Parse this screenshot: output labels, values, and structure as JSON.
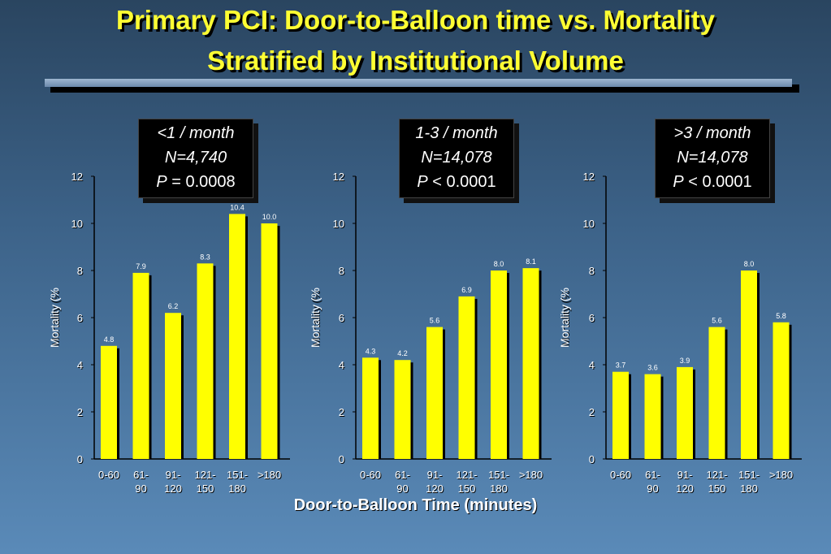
{
  "title": {
    "line1": "Primary PCI:  Door-to-Balloon time vs. Mortality",
    "line2": "Stratified by Institutional Volume"
  },
  "x_axis_title": "Door-to-Balloon Time (minutes)",
  "colors": {
    "bar": "#ffff00",
    "title": "#ffff33",
    "background": "#3c6288"
  },
  "chart_data": [
    {
      "type": "bar",
      "stratum": "<1 / month",
      "n_label": "N=4,740",
      "p_label": "P",
      "p_value": "= 0.0008",
      "ylabel": "Mortality (%",
      "ylim": [
        0,
        12
      ],
      "yticks": [
        "0",
        "2",
        "4",
        "6",
        "8",
        "10",
        "12"
      ],
      "categories": [
        [
          "0-60"
        ],
        [
          "61-",
          "90"
        ],
        [
          "91-",
          "120"
        ],
        [
          "121-",
          "150"
        ],
        [
          "151-",
          "180"
        ],
        [
          ">180"
        ]
      ],
      "values": [
        4.8,
        7.9,
        6.2,
        8.3,
        10.4,
        10.0
      ],
      "value_labels": [
        "4.8",
        "7.9",
        "6.2",
        "8.3",
        "10.4",
        "10.0"
      ]
    },
    {
      "type": "bar",
      "stratum": "1-3 / month",
      "n_label": "N=14,078",
      "p_label": "P",
      "p_value": "< 0.0001",
      "ylabel": "Mortality (%",
      "ylim": [
        0,
        12
      ],
      "yticks": [
        "0",
        "2",
        "4",
        "6",
        "8",
        "10",
        "12"
      ],
      "categories": [
        [
          "0-60"
        ],
        [
          "61-",
          "90"
        ],
        [
          "91-",
          "120"
        ],
        [
          "121-",
          "150"
        ],
        [
          "151-",
          "180"
        ],
        [
          ">180"
        ]
      ],
      "values": [
        4.3,
        4.2,
        5.6,
        6.9,
        8.0,
        8.1
      ],
      "value_labels": [
        "4.3",
        "4.2",
        "5.6",
        "6.9",
        "8.0",
        "8.1"
      ]
    },
    {
      "type": "bar",
      "stratum": ">3 / month",
      "n_label": "N=14,078",
      "p_label": "P",
      "p_value": "< 0.0001",
      "ylabel": "Mortality (%",
      "ylim": [
        0,
        12
      ],
      "yticks": [
        "0",
        "2",
        "4",
        "6",
        "8",
        "10",
        "12"
      ],
      "categories": [
        [
          "0-60"
        ],
        [
          "61-",
          "90"
        ],
        [
          "91-",
          "120"
        ],
        [
          "121-",
          "150"
        ],
        [
          "151-",
          "180"
        ],
        [
          ">180"
        ]
      ],
      "values": [
        3.7,
        3.6,
        3.9,
        5.6,
        8.0,
        5.8
      ],
      "value_labels": [
        "3.7",
        "3.6",
        "3.9",
        "5.6",
        "8.0",
        "5.8"
      ]
    }
  ]
}
